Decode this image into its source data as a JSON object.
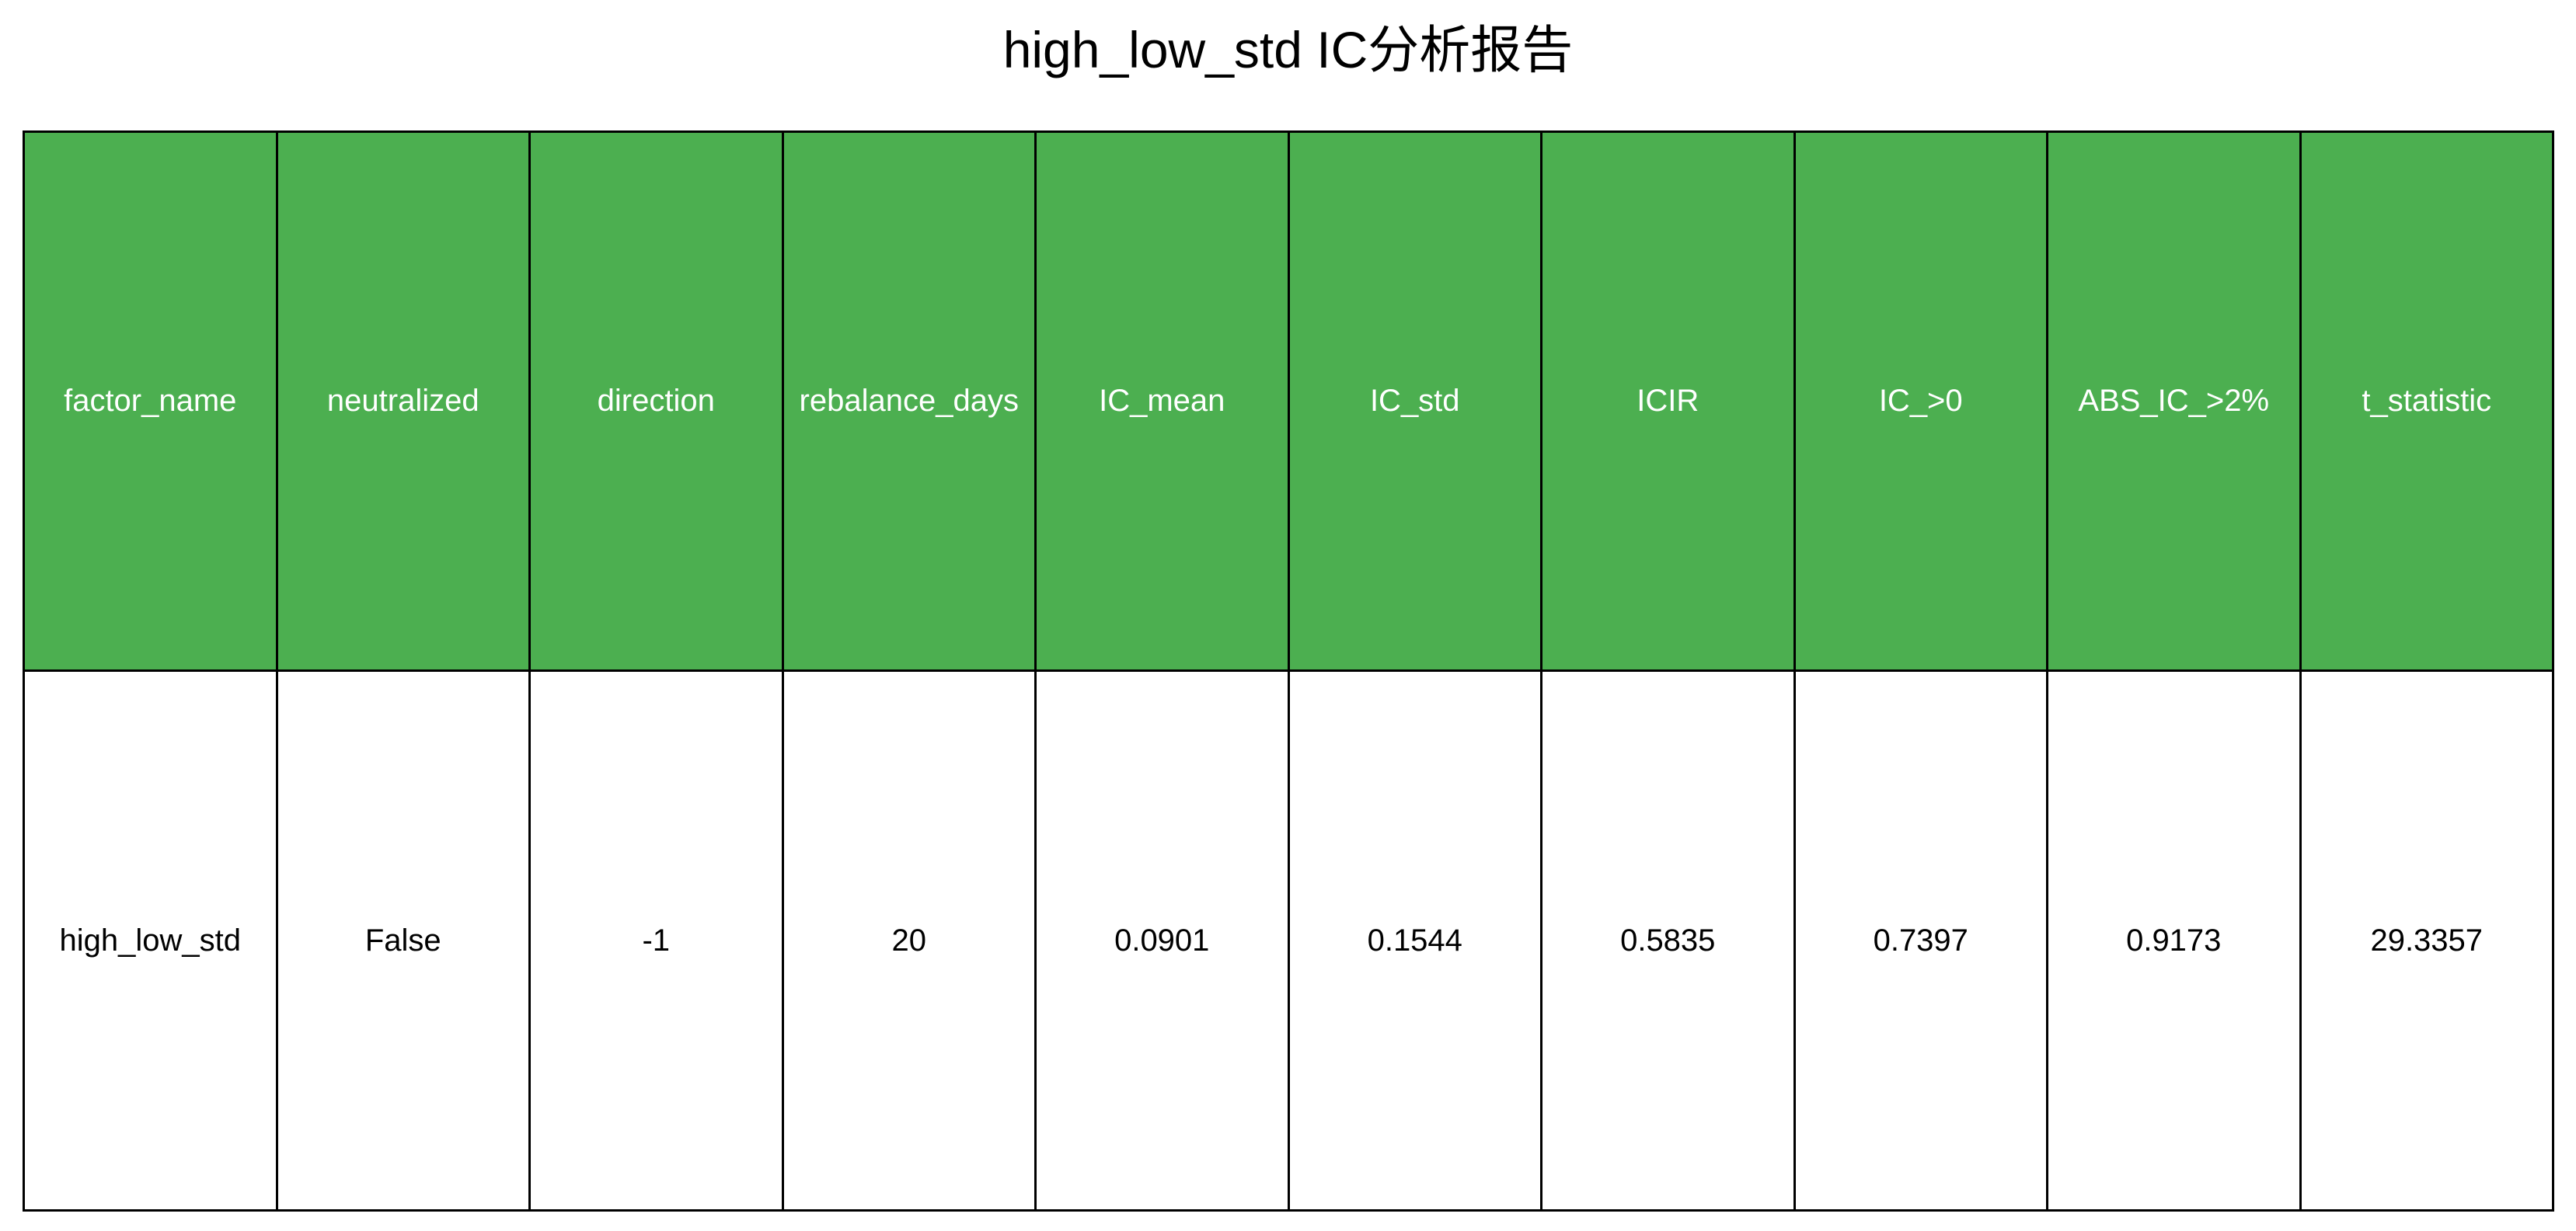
{
  "chart_data": {
    "type": "table",
    "title": "high_low_std IC分析报告",
    "columns": [
      "factor_name",
      "neutralized",
      "direction",
      "rebalance_days",
      "IC_mean",
      "IC_std",
      "ICIR",
      "IC_>0",
      "ABS_IC_>2%",
      "t_statistic"
    ],
    "rows": [
      [
        "high_low_std",
        "False",
        "-1",
        "20",
        "0.0901",
        "0.1544",
        "0.5835",
        "0.7397",
        "0.9173",
        "29.3357"
      ]
    ],
    "header_color": "#4CAF50",
    "header_text_color": "#FFFFFF",
    "cell_color": "#FFFFFF",
    "border_color": "#000000"
  }
}
